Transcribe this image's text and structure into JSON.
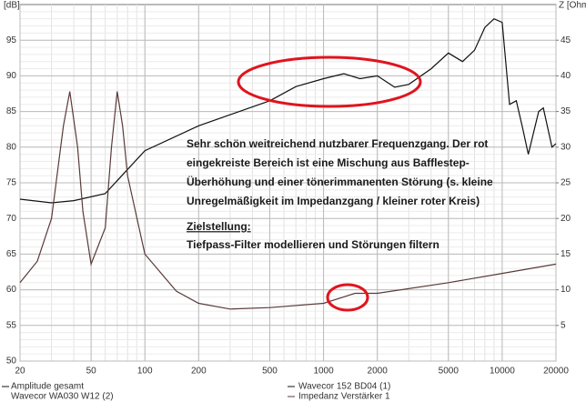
{
  "chart_data": {
    "type": "line",
    "y_label": "[dB]",
    "y2_label": "Z [Ohm]",
    "xlim": [
      20,
      20000
    ],
    "xticks": [
      20,
      50,
      100,
      200,
      500,
      1000,
      2000,
      5000,
      10000,
      20000
    ],
    "log_x": true,
    "ylim": [
      50,
      100
    ],
    "yticks": [
      50,
      55,
      60,
      65,
      70,
      75,
      80,
      85,
      90,
      95
    ],
    "y2lim": [
      0,
      50
    ],
    "y2ticks": [
      5,
      10,
      15,
      20,
      25,
      30,
      35,
      40,
      45
    ],
    "grid": true,
    "series": [
      {
        "name": "Amplitude gesamt",
        "color": "#111111",
        "x": [
          20,
          30,
          40,
          60,
          100,
          200,
          500,
          700,
          1000,
          1300,
          1600,
          2000,
          2500,
          3000,
          4000,
          5000,
          6000,
          7000,
          8000,
          9000,
          10000,
          11000,
          12000,
          13000,
          14000,
          16000,
          17000,
          19000,
          20000
        ],
        "values": [
          72.7,
          72.2,
          72.5,
          73.5,
          79.5,
          83,
          86.5,
          88.5,
          89.6,
          90.3,
          89.6,
          90,
          88.4,
          88.8,
          91,
          93.2,
          92,
          93.6,
          96.8,
          98,
          97.5,
          86,
          86.5,
          82.7,
          79,
          85,
          85.5,
          80,
          80.5
        ]
      },
      {
        "name": "Impedanz Verstärker 1",
        "color": "#5a3a3a",
        "axis": "y2",
        "x": [
          20,
          25,
          30,
          35,
          38,
          42,
          45,
          50,
          60,
          65,
          70,
          75,
          80,
          100,
          150,
          200,
          300,
          500,
          1000,
          1500,
          2000,
          5000,
          10000,
          20000
        ],
        "values": [
          11,
          14,
          20,
          33,
          37.8,
          30,
          21,
          13.6,
          18.7,
          30,
          37.8,
          33,
          26,
          15,
          9.8,
          8.1,
          7.3,
          7.5,
          8.1,
          9.5,
          9.5,
          11,
          12.3,
          13.6
        ]
      }
    ],
    "legend_extra": [
      "Wavecor 152 BD04 (1)",
      "Wavecor WA030 W12 (2)"
    ],
    "annotation": [
      "Sehr schön weitreichend  nutzbarer Frequenzgang. Der rot",
      "eingekreiste Bereich ist eine Mischung aus Bafflestep-",
      "Überhöhung und einer tönerimmanenten Störung (s. kleine",
      "Unregelmäßigkeit im Impedanzgang / kleiner roter Kreis)"
    ],
    "goal_heading": "Zielstellung:",
    "goal_text": "Tiefpass-Filter modellieren und Störungen filtern"
  }
}
